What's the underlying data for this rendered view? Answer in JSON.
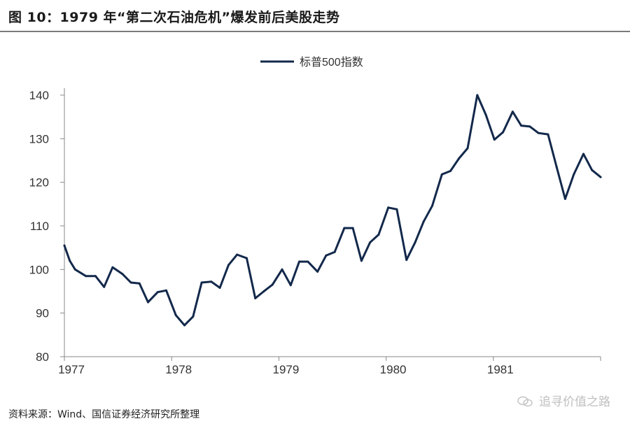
{
  "header": {
    "title": "图 10：1979 年“第二次石油危机”爆发前后美股走势"
  },
  "footer": {
    "source": "资料来源：Wind、国信证券经济研究所整理"
  },
  "watermark": {
    "text": "追寻价值之路",
    "icon": "wechat-icon"
  },
  "colors": {
    "line": "#13294b",
    "axis": "#888888",
    "tick_text": "#333333"
  },
  "chart_data": {
    "type": "line",
    "title": "",
    "xlabel": "",
    "ylabel": "",
    "legend_position": "top-center",
    "grid": false,
    "xlim": [
      1977,
      1982
    ],
    "ylim": [
      80,
      140
    ],
    "x_ticks": [
      1977,
      1978,
      1979,
      1980,
      1981
    ],
    "x_tick_labels": [
      "1977",
      "1978",
      "1979",
      "1980",
      "1981"
    ],
    "y_ticks": [
      80,
      90,
      100,
      110,
      120,
      130,
      140
    ],
    "y_tick_labels": [
      "80",
      "90",
      "100",
      "110",
      "120",
      "130",
      "140"
    ],
    "series": [
      {
        "name": "标普500指数",
        "x": [
          1977.0,
          1977.05,
          1977.1,
          1977.2,
          1977.29,
          1977.37,
          1977.45,
          1977.54,
          1977.62,
          1977.7,
          1977.78,
          1977.87,
          1977.95,
          1978.04,
          1978.12,
          1978.2,
          1978.28,
          1978.37,
          1978.45,
          1978.53,
          1978.61,
          1978.7,
          1978.78,
          1978.86,
          1978.94,
          1979.03,
          1979.11,
          1979.19,
          1979.27,
          1979.36,
          1979.44,
          1979.52,
          1979.61,
          1979.69,
          1979.77,
          1979.85,
          1979.93,
          1980.02,
          1980.1,
          1980.19,
          1980.27,
          1980.35,
          1980.43,
          1980.52,
          1980.6,
          1980.68,
          1980.76,
          1980.85,
          1980.93,
          1981.01,
          1981.09,
          1981.18,
          1981.26,
          1981.34,
          1981.42,
          1981.51,
          1981.59,
          1981.67,
          1981.75,
          1981.84,
          1981.92,
          1982.0
        ],
        "values": [
          105.5,
          102.0,
          100.0,
          98.5,
          98.5,
          96.0,
          100.5,
          99.0,
          97.0,
          96.8,
          92.5,
          94.8,
          95.2,
          89.5,
          87.2,
          89.2,
          97.0,
          97.2,
          95.8,
          101.0,
          103.4,
          102.6,
          93.4,
          95.0,
          96.5,
          100.0,
          96.4,
          101.8,
          101.8,
          99.5,
          103.2,
          104.0,
          109.5,
          109.5,
          102.0,
          106.2,
          108.0,
          114.2,
          113.8,
          102.2,
          106.2,
          111.0,
          114.6,
          121.8,
          122.6,
          125.5,
          127.8,
          140.0,
          135.5,
          129.8,
          131.5,
          136.2,
          133.0,
          132.8,
          131.3,
          131.0,
          123.5,
          116.2,
          121.8,
          126.5,
          122.8,
          121.2
        ]
      }
    ]
  }
}
